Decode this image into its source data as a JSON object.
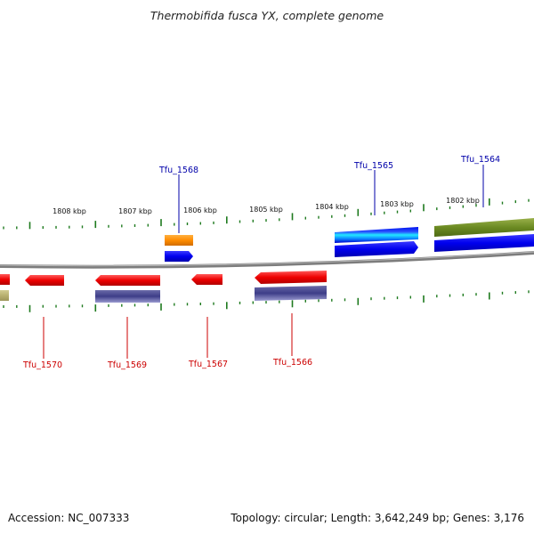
{
  "title": "Thermobifida fusca YX, complete genome",
  "footer": {
    "accession": "Accession: NC_007333",
    "summary": "Topology: circular; Length: 3,642,249 bp; Genes: 3,176"
  },
  "colors": {
    "backbone": "#8a8a8a",
    "tick": "#1e7a1e",
    "forward_label": "#0000aa",
    "reverse_label": "#cc0000"
  },
  "scale_labels": [
    "1808 kbp",
    "1807 kbp",
    "1806 kbp",
    "1805 kbp",
    "1804 kbp",
    "1803 kbp",
    "1802 kbp"
  ],
  "gene_labels": {
    "forward": [
      "Tfu_1568",
      "Tfu_1565",
      "Tfu_1564"
    ],
    "reverse": [
      "Tfu_1570",
      "Tfu_1569",
      "Tfu_1567",
      "Tfu_1566"
    ]
  }
}
